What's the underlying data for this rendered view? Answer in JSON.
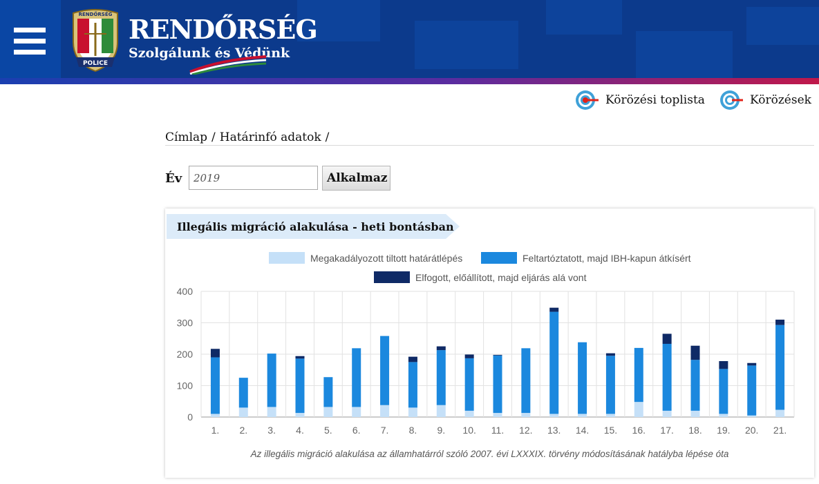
{
  "header": {
    "menu_icon": "hamburger-menu-icon",
    "badge_top": "RENDŐRSÉG",
    "badge_bottom": "POLICE",
    "title": "RENDŐRSÉG",
    "subtitle": "Szolgálunk és Védünk",
    "brand_color": "#0c3a8c"
  },
  "top_links": [
    {
      "label": "Körözési toplista",
      "icon": "target-red-icon"
    },
    {
      "label": "Körözések",
      "icon": "target-blue-icon"
    }
  ],
  "breadcrumb": {
    "items": [
      "Címlap",
      "Határinfó adatok"
    ],
    "separator": "/"
  },
  "year_filter": {
    "label": "Év",
    "value": "2019",
    "button": "Alkalmaz"
  },
  "panel": {
    "title": "Illegális migráció alakulása - heti bontásban",
    "caption": "Az illegális migráció alakulása az államhatárról szóló 2007. évi LXXXIX. törvény módosításának hatályba lépése óta"
  },
  "chart_data": {
    "type": "bar",
    "stacked": true,
    "categories": [
      "1.",
      "2.",
      "3.",
      "4.",
      "5.",
      "6.",
      "7.",
      "8.",
      "9.",
      "10.",
      "11.",
      "12.",
      "13.",
      "14.",
      "15.",
      "16.",
      "17.",
      "18.",
      "19.",
      "20.",
      "21."
    ],
    "series": [
      {
        "name": "Megakadályozott tiltott határátlépés",
        "color": "#c5e0f8",
        "values": [
          10,
          30,
          32,
          13,
          32,
          32,
          38,
          30,
          38,
          20,
          13,
          13,
          10,
          10,
          10,
          48,
          20,
          20,
          10,
          5,
          23
        ]
      },
      {
        "name": "Feltartóztatott, majd IBH-kapun átkísért",
        "color": "#1b88de",
        "values": [
          180,
          95,
          170,
          173,
          95,
          187,
          220,
          145,
          175,
          167,
          183,
          206,
          325,
          228,
          185,
          172,
          213,
          162,
          143,
          159,
          270
        ]
      },
      {
        "name": "Elfogott, előállított, majd eljárás alá vont",
        "color": "#0f2a66",
        "values": [
          27,
          0,
          0,
          8,
          0,
          0,
          0,
          17,
          12,
          12,
          2,
          0,
          13,
          0,
          8,
          0,
          32,
          45,
          25,
          8,
          17
        ]
      }
    ],
    "ylim": [
      0,
      400
    ],
    "yticks": [
      0,
      100,
      200,
      300,
      400
    ],
    "grid": true,
    "legend_position": "top"
  }
}
